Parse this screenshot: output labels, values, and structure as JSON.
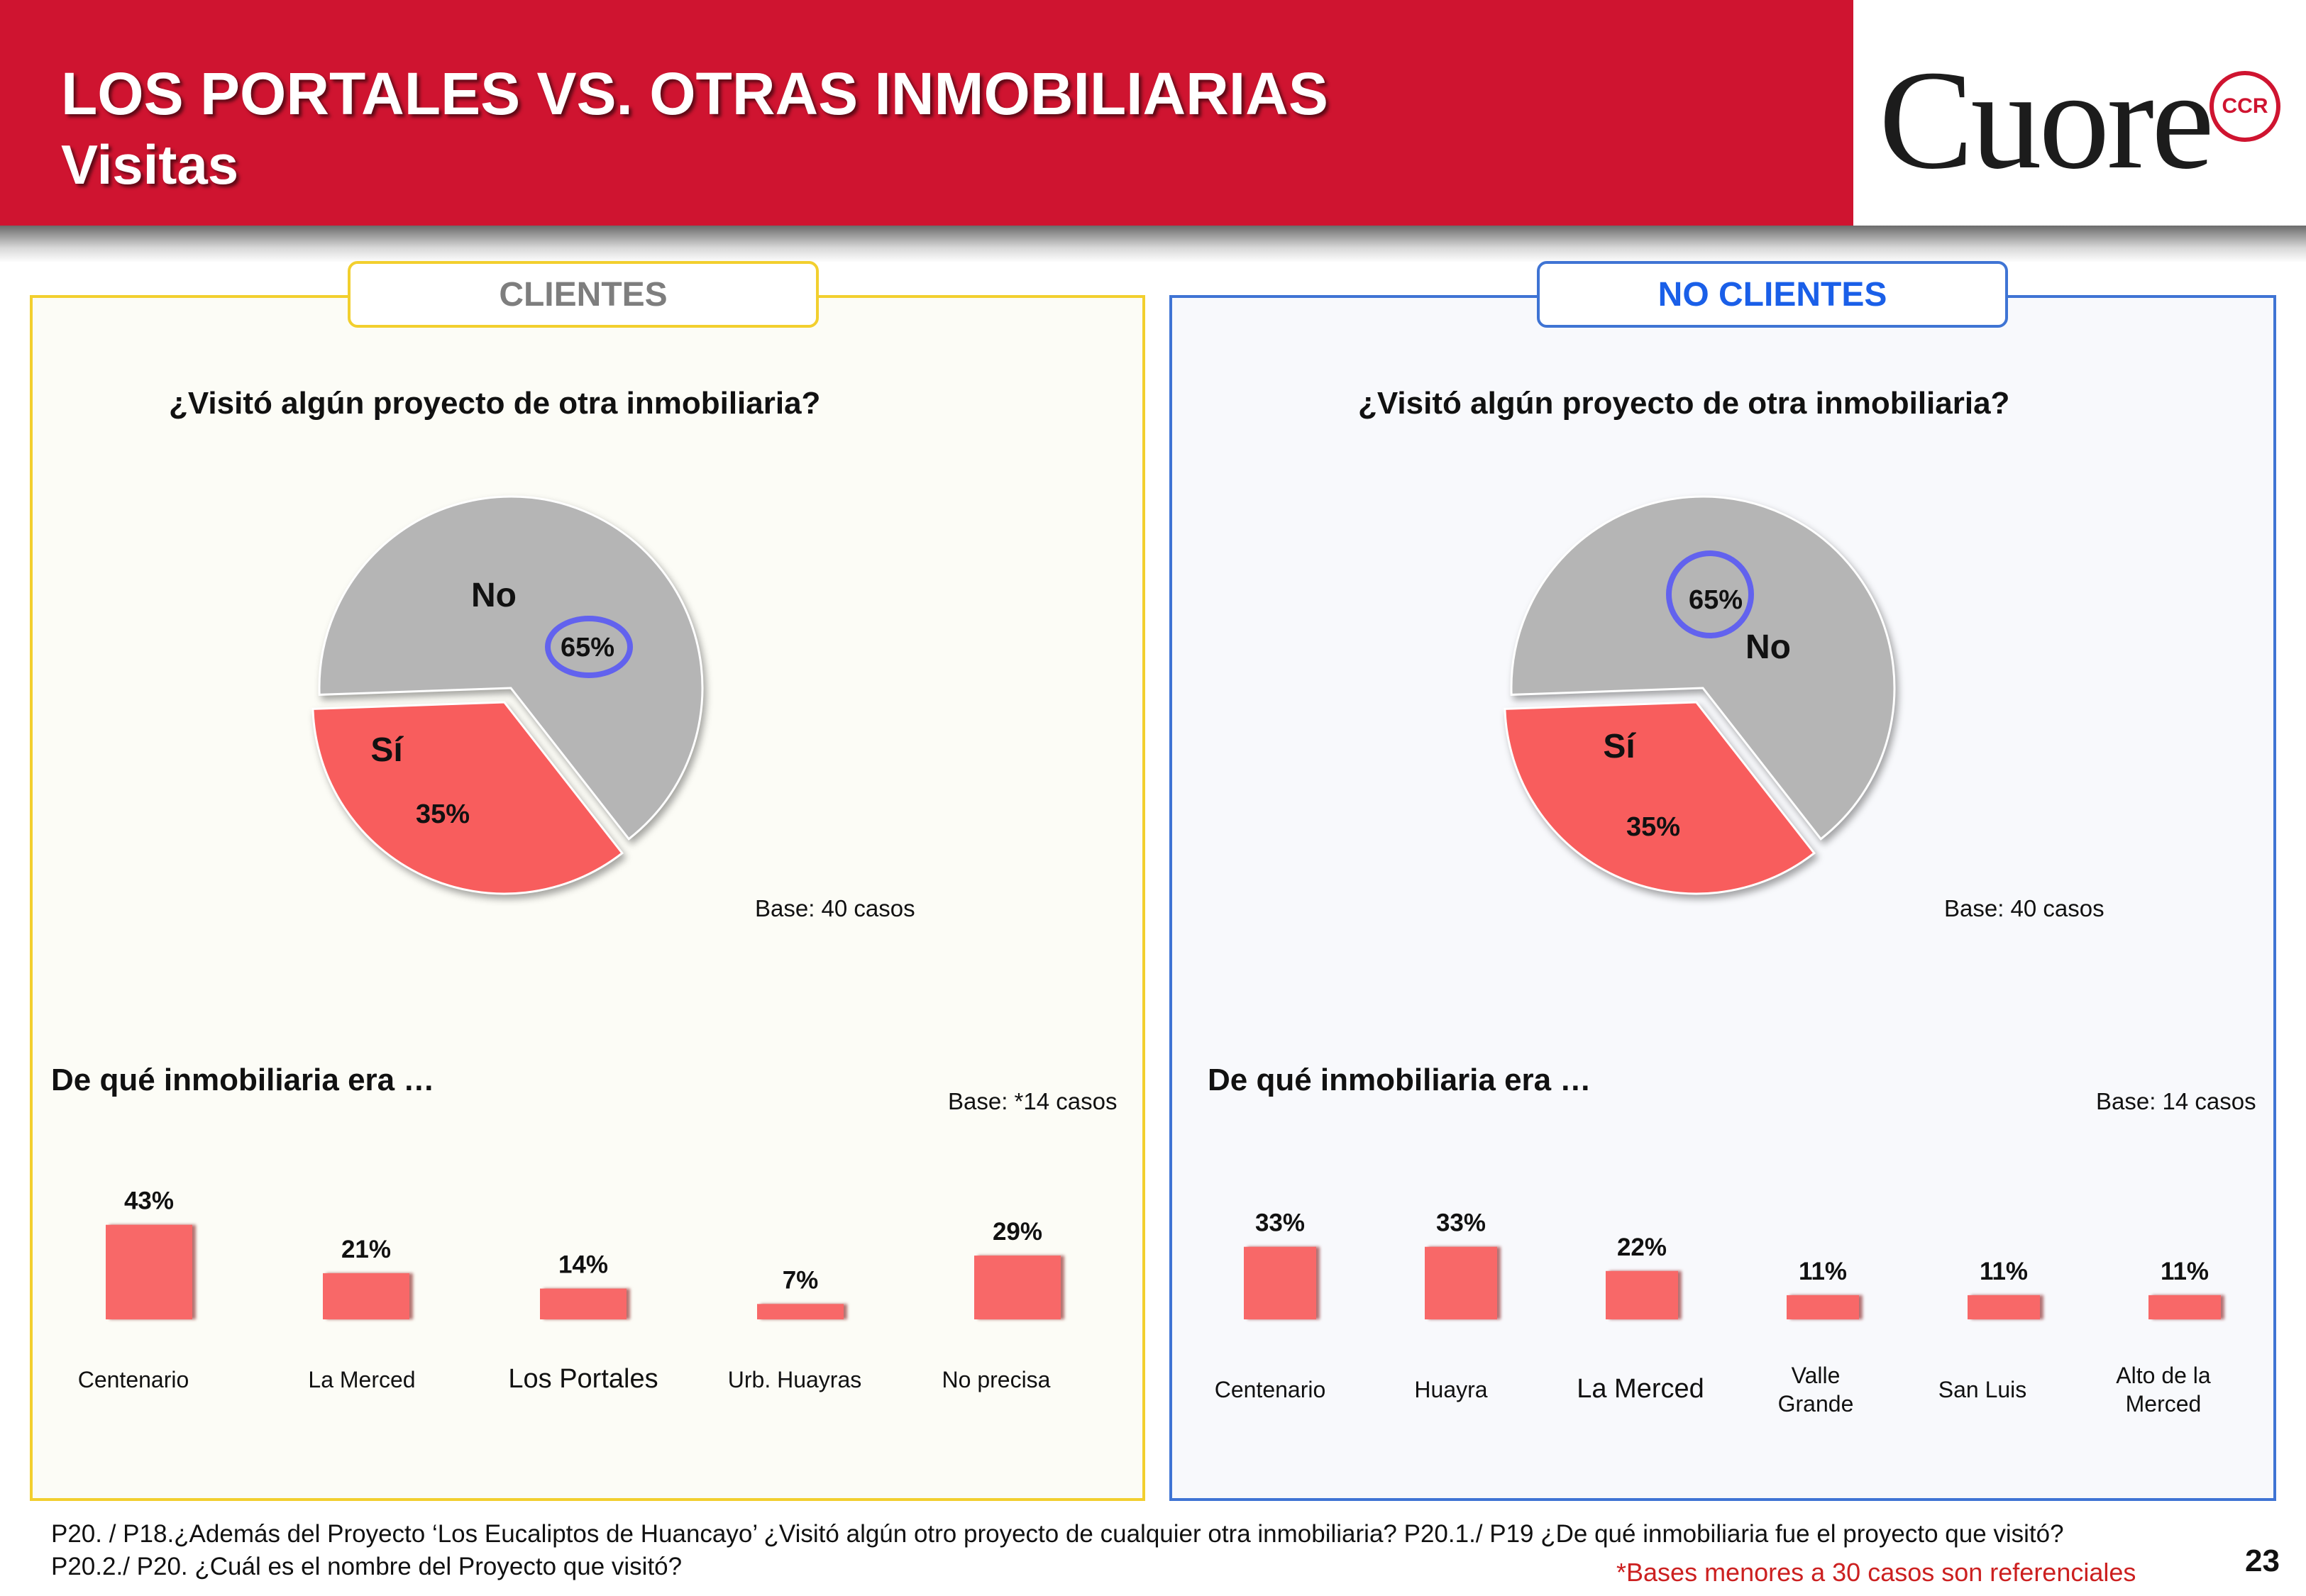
{
  "header": {
    "title": "LOS PORTALES VS. OTRAS INMOBILIARIAS",
    "subtitle": "Visitas",
    "logo_text": "Cuore",
    "logo_badge": "CCR"
  },
  "colors": {
    "header": "#cf1430",
    "si": "#f85d5d",
    "no": "#b5b5b5",
    "bar": "#f86868",
    "clientes_border": "#f2cf2e",
    "no_clientes_border": "#3f74d4"
  },
  "clientes": {
    "tab": "CLIENTES",
    "question": "¿Visitó algún proyecto de otra inmobiliaria?",
    "pie_base": "Base: 40 casos",
    "section": "De qué inmobiliaria era …",
    "bar_base": "Base: *14 casos"
  },
  "no_clientes": {
    "tab": "NO CLIENTES",
    "question": "¿Visitó algún proyecto de otra inmobiliaria?",
    "pie_base": "Base: 40 casos",
    "section": "De qué inmobiliaria era …",
    "bar_base": "Base: 14 casos"
  },
  "chart_data": [
    {
      "type": "pie",
      "panel": "clientes",
      "title": "¿Visitó algún proyecto de otra inmobiliaria?",
      "slices": [
        {
          "label": "No",
          "value": 65,
          "display": "65%"
        },
        {
          "label": "Sí",
          "value": 35,
          "display": "35%"
        }
      ]
    },
    {
      "type": "bar",
      "panel": "clientes",
      "title": "De qué inmobiliaria era …",
      "categories": [
        [
          "Centenario"
        ],
        [
          "La Merced"
        ],
        [
          "Los Portales"
        ],
        [
          "Urb. Huayras"
        ],
        [
          "No precisa"
        ]
      ],
      "values": [
        43,
        21,
        14,
        7,
        29
      ],
      "labels": [
        "43%",
        "21%",
        "14%",
        "7%",
        "29%"
      ]
    },
    {
      "type": "pie",
      "panel": "no_clientes",
      "title": "¿Visitó algún proyecto de otra inmobiliaria?",
      "slices": [
        {
          "label": "No",
          "value": 65,
          "display": "65%"
        },
        {
          "label": "Sí",
          "value": 35,
          "display": "35%"
        }
      ]
    },
    {
      "type": "bar",
      "panel": "no_clientes",
      "title": "De qué inmobiliaria era …",
      "categories": [
        [
          "Centenario"
        ],
        [
          "Huayra"
        ],
        [
          "La Merced"
        ],
        [
          "Valle",
          "Grande"
        ],
        [
          "San Luis"
        ],
        [
          "Alto de la",
          "Merced"
        ]
      ],
      "values": [
        33,
        33,
        22,
        11,
        11,
        11
      ],
      "labels": [
        "33%",
        "33%",
        "22%",
        "11%",
        "11%",
        "11%"
      ]
    }
  ],
  "footnote": {
    "line1": "P20. / P18.¿Además del Proyecto  ‘Los Eucaliptos de Huancayo’ ¿Visitó algún otro proyecto de cualquier otra inmobiliaria?  P20.1./ P19 ¿De qué inmobiliaria fue el proyecto que visitó?",
    "line2": "P20.2./ P20. ¿Cuál es el nombre del Proyecto que visitó?",
    "note": "*Bases menores a 30 casos son referenciales"
  },
  "page_number": "23"
}
